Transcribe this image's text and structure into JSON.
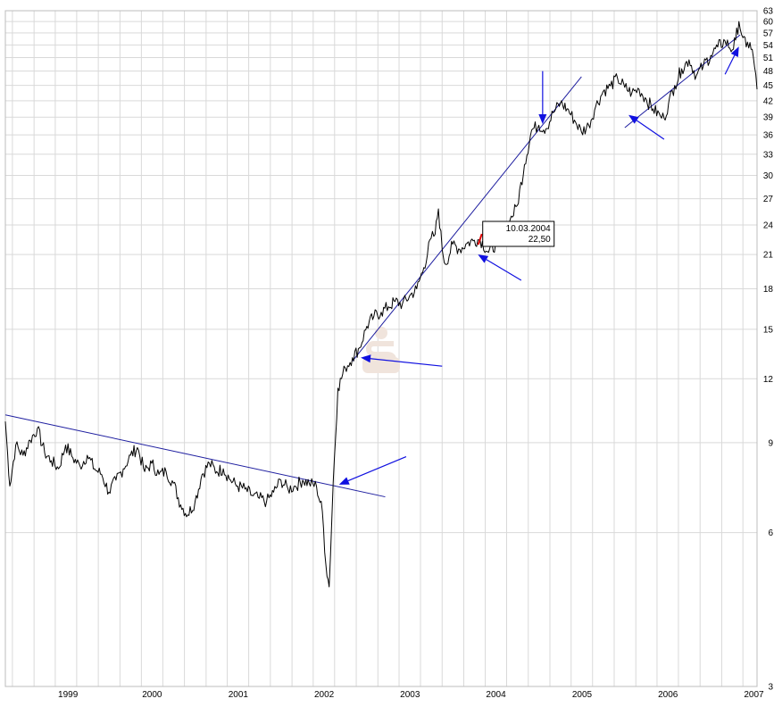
{
  "chart_data": {
    "type": "line",
    "title": "",
    "xlabel": "",
    "ylabel": "",
    "y_scale": "log",
    "ylim": [
      3,
      63
    ],
    "xlim": [
      "1998-09-01",
      "2007-05-31"
    ],
    "y_ticks": [
      3,
      6,
      9,
      12,
      15,
      18,
      21,
      24,
      27,
      30,
      33,
      36,
      39,
      42,
      45,
      48,
      51,
      54,
      57,
      60,
      63
    ],
    "x_ticks": [
      {
        "label": "1999",
        "date": "1999-01-01"
      },
      {
        "label": "2000",
        "date": "2000-01-01"
      },
      {
        "label": "2001",
        "date": "2001-01-01"
      },
      {
        "label": "2002",
        "date": "2002-01-01"
      },
      {
        "label": "2003",
        "date": "2003-01-01"
      },
      {
        "label": "2004",
        "date": "2004-01-01"
      },
      {
        "label": "2005",
        "date": "2005-01-01"
      },
      {
        "label": "2006",
        "date": "2006-01-01"
      },
      {
        "label": "2007",
        "date": "2007-01-01"
      }
    ],
    "grid": true,
    "series": [
      {
        "color": "#000000",
        "points": [
          [
            "1998-09-01",
            9.9
          ],
          [
            "1998-09-20",
            7.4
          ],
          [
            "1998-10-15",
            8.9
          ],
          [
            "1998-11-15",
            8.5
          ],
          [
            "1998-12-15",
            9.1
          ],
          [
            "1999-01-15",
            9.6
          ],
          [
            "1999-02-15",
            8.6
          ],
          [
            "1999-03-15",
            8.3
          ],
          [
            "1999-04-15",
            8.0
          ],
          [
            "1999-05-15",
            8.9
          ],
          [
            "1999-06-15",
            8.4
          ],
          [
            "1999-07-15",
            8.1
          ],
          [
            "1999-08-15",
            8.5
          ],
          [
            "1999-09-15",
            8.0
          ],
          [
            "1999-10-15",
            7.8
          ],
          [
            "1999-11-15",
            7.2
          ],
          [
            "1999-12-15",
            7.6
          ],
          [
            "2000-01-15",
            8.0
          ],
          [
            "2000-02-15",
            8.5
          ],
          [
            "2000-03-15",
            8.8
          ],
          [
            "2000-04-15",
            7.9
          ],
          [
            "2000-05-15",
            8.2
          ],
          [
            "2000-06-15",
            7.8
          ],
          [
            "2000-07-15",
            7.9
          ],
          [
            "2000-08-15",
            7.5
          ],
          [
            "2000-09-15",
            6.8
          ],
          [
            "2000-10-15",
            6.5
          ],
          [
            "2000-11-15",
            6.9
          ],
          [
            "2000-12-15",
            7.8
          ],
          [
            "2001-01-15",
            8.2
          ],
          [
            "2001-02-15",
            7.9
          ],
          [
            "2001-03-15",
            8.0
          ],
          [
            "2001-04-15",
            7.6
          ],
          [
            "2001-05-15",
            7.4
          ],
          [
            "2001-06-15",
            7.3
          ],
          [
            "2001-07-15",
            7.1
          ],
          [
            "2001-08-15",
            7.0
          ],
          [
            "2001-09-15",
            6.9
          ],
          [
            "2001-10-15",
            7.2
          ],
          [
            "2001-11-15",
            7.6
          ],
          [
            "2001-12-15",
            7.3
          ],
          [
            "2002-01-15",
            7.4
          ],
          [
            "2002-02-15",
            7.6
          ],
          [
            "2002-03-15",
            7.5
          ],
          [
            "2002-04-15",
            7.4
          ],
          [
            "2002-05-10",
            6.6
          ],
          [
            "2002-05-25",
            5.2
          ],
          [
            "2002-06-08",
            4.7
          ],
          [
            "2002-06-25",
            7.5
          ],
          [
            "2002-07-15",
            11.5
          ],
          [
            "2002-08-15",
            12.6
          ],
          [
            "2002-09-15",
            13.2
          ],
          [
            "2002-10-15",
            13.8
          ],
          [
            "2002-11-15",
            15.2
          ],
          [
            "2002-12-15",
            15.9
          ],
          [
            "2003-01-15",
            16.2
          ],
          [
            "2003-02-15",
            16.6
          ],
          [
            "2003-03-15",
            17.0
          ],
          [
            "2003-04-15",
            16.8
          ],
          [
            "2003-05-15",
            17.4
          ],
          [
            "2003-06-15",
            18.0
          ],
          [
            "2003-07-15",
            19.8
          ],
          [
            "2003-08-15",
            22.6
          ],
          [
            "2003-09-01",
            23.0
          ],
          [
            "2003-09-15",
            25.8
          ],
          [
            "2003-10-01",
            21.5
          ],
          [
            "2003-10-15",
            20.1
          ],
          [
            "2003-11-15",
            22.0
          ],
          [
            "2003-12-15",
            21.5
          ],
          [
            "2004-01-15",
            22.1
          ],
          [
            "2004-02-15",
            22.4
          ],
          [
            "2004-03-10",
            22.5
          ],
          [
            "2004-04-15",
            21.2
          ],
          [
            "2004-05-15",
            22.0
          ],
          [
            "2004-06-15",
            22.9
          ],
          [
            "2004-07-15",
            24.5
          ],
          [
            "2004-08-15",
            26.2
          ],
          [
            "2004-09-15",
            31.5
          ],
          [
            "2004-10-15",
            36.8
          ],
          [
            "2004-11-15",
            37.6
          ],
          [
            "2004-12-15",
            37.0
          ],
          [
            "2005-01-15",
            39.8
          ],
          [
            "2005-02-15",
            41.6
          ],
          [
            "2005-03-15",
            40.5
          ],
          [
            "2005-04-15",
            38.5
          ],
          [
            "2005-05-15",
            36.5
          ],
          [
            "2005-06-15",
            37.6
          ],
          [
            "2005-07-15",
            41.0
          ],
          [
            "2005-08-15",
            43.8
          ],
          [
            "2005-09-15",
            44.9
          ],
          [
            "2005-10-15",
            46.5
          ],
          [
            "2005-11-15",
            44.6
          ],
          [
            "2005-12-15",
            43.5
          ],
          [
            "2006-01-15",
            44.2
          ],
          [
            "2006-02-15",
            42.2
          ],
          [
            "2006-03-15",
            40.5
          ],
          [
            "2006-04-15",
            39.2
          ],
          [
            "2006-05-01",
            38.8
          ],
          [
            "2006-05-20",
            41.5
          ],
          [
            "2006-06-15",
            45.0
          ],
          [
            "2006-07-15",
            48.5
          ],
          [
            "2006-08-15",
            50.5
          ],
          [
            "2006-09-15",
            47.0
          ],
          [
            "2006-10-15",
            49.2
          ],
          [
            "2006-11-15",
            51.5
          ],
          [
            "2006-12-15",
            53.5
          ],
          [
            "2007-01-15",
            55.0
          ],
          [
            "2007-02-15",
            52.8
          ],
          [
            "2007-03-01",
            55.2
          ],
          [
            "2007-03-15",
            60.0
          ],
          [
            "2007-04-01",
            55.8
          ],
          [
            "2007-04-15",
            53.5
          ],
          [
            "2007-05-01",
            54.6
          ],
          [
            "2007-05-15",
            51.2
          ],
          [
            "2007-05-31",
            44.2
          ]
        ]
      }
    ],
    "trendlines": [
      {
        "from": [
          "1998-09-01",
          10.2
        ],
        "to": [
          "2003-02-01",
          7.05
        ],
        "color": "#1f1fa0"
      },
      {
        "from": [
          "2002-09-15",
          13.0
        ],
        "to": [
          "2005-05-15",
          46.8
        ],
        "color": "#1f1fa0"
      },
      {
        "from": [
          "2005-11-15",
          37.2
        ],
        "to": [
          "2007-03-20",
          56.5
        ],
        "color": "#1f1fa0"
      }
    ],
    "arrows": [
      {
        "from": [
          "2003-05-01",
          8.45
        ],
        "to": [
          "2002-07-20",
          7.45
        ],
        "color": "#1010e0"
      },
      {
        "from": [
          "2003-10-01",
          12.7
        ],
        "to": [
          "2002-10-20",
          13.2
        ],
        "color": "#1010e0"
      },
      {
        "from": [
          "2004-09-01",
          18.7
        ],
        "to": [
          "2004-03-01",
          21.0
        ],
        "color": "#1010e0"
      },
      {
        "from": [
          "2004-12-01",
          48.0
        ],
        "to": [
          "2004-12-01",
          37.8
        ],
        "color": "#1010e0"
      },
      {
        "from": [
          "2006-05-01",
          35.3
        ],
        "to": [
          "2005-12-01",
          39.4
        ],
        "color": "#1010e0"
      },
      {
        "from": [
          "2007-01-15",
          47.3
        ],
        "to": [
          "2007-03-15",
          53.6
        ],
        "color": "#1010e0"
      }
    ],
    "marker": {
      "date": "2004-03-10",
      "value": 22.5,
      "color": "#e00000"
    },
    "tooltip": {
      "date_text": "10.03.2004",
      "value_text": "22,50"
    }
  },
  "watermark": {
    "icon": "sparkasse-logo-icon",
    "color": "#f0e4dc"
  }
}
